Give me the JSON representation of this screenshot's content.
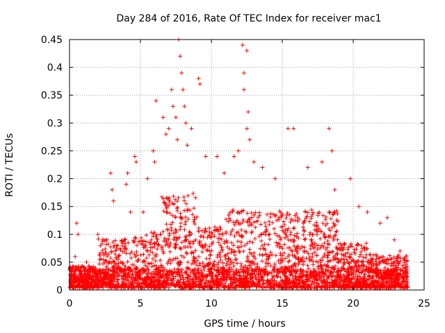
{
  "chart_data": {
    "type": "scatter",
    "title": "Day 284 of 2016, Rate Of TEC Index for receiver mac1",
    "xlabel": "GPS time / hours",
    "ylabel": "ROTI / TECUs",
    "xlim": [
      0,
      25
    ],
    "ylim": [
      0,
      0.45
    ],
    "x_ticks": [
      0,
      5,
      10,
      15,
      20,
      25
    ],
    "y_ticks": [
      0,
      0.05,
      0.1,
      0.15,
      0.2,
      0.25,
      0.3,
      0.35,
      0.4,
      0.45
    ],
    "x_tick_labels": [
      "0",
      "5",
      "10",
      "15",
      "20",
      "25"
    ],
    "y_tick_labels": [
      "0",
      "0.05",
      "0.1",
      "0.15",
      "0.2",
      "0.25",
      "0.3",
      "0.35",
      "0.4",
      "0.45"
    ],
    "grid": true,
    "marker": "+",
    "marker_color": "#ff0000",
    "grid_color": "#a0a0a0",
    "series": [
      {
        "name": "ROTI",
        "points": [
          [
            0.5,
            0.12
          ],
          [
            0.6,
            0.1
          ],
          [
            0.4,
            0.06
          ],
          [
            1.2,
            0.05
          ],
          [
            2.0,
            0.1
          ],
          [
            2.9,
            0.21
          ],
          [
            3.0,
            0.18
          ],
          [
            3.1,
            0.16
          ],
          [
            4.1,
            0.21
          ],
          [
            4.0,
            0.19
          ],
          [
            4.3,
            0.14
          ],
          [
            4.6,
            0.24
          ],
          [
            4.7,
            0.23
          ],
          [
            5.2,
            0.14
          ],
          [
            5.5,
            0.2
          ],
          [
            5.9,
            0.25
          ],
          [
            6.0,
            0.23
          ],
          [
            6.1,
            0.34
          ],
          [
            6.6,
            0.31
          ],
          [
            6.8,
            0.28
          ],
          [
            7.0,
            0.29
          ],
          [
            7.2,
            0.36
          ],
          [
            7.3,
            0.33
          ],
          [
            7.5,
            0.31
          ],
          [
            7.7,
            0.45
          ],
          [
            7.8,
            0.42
          ],
          [
            7.9,
            0.39
          ],
          [
            8.0,
            0.36
          ],
          [
            8.1,
            0.33
          ],
          [
            8.2,
            0.3
          ],
          [
            7.6,
            0.27
          ],
          [
            8.3,
            0.26
          ],
          [
            8.6,
            0.29
          ],
          [
            9.1,
            0.38
          ],
          [
            9.2,
            0.37
          ],
          [
            9.6,
            0.24
          ],
          [
            10.4,
            0.24
          ],
          [
            10.9,
            0.21
          ],
          [
            11.6,
            0.24
          ],
          [
            11.9,
            0.25
          ],
          [
            12.2,
            0.44
          ],
          [
            12.3,
            0.39
          ],
          [
            12.5,
            0.43
          ],
          [
            12.6,
            0.32
          ],
          [
            12.7,
            0.27
          ],
          [
            12.3,
            0.36
          ],
          [
            12.5,
            0.29
          ],
          [
            13.0,
            0.23
          ],
          [
            13.6,
            0.22
          ],
          [
            14.5,
            0.2
          ],
          [
            15.4,
            0.29
          ],
          [
            15.8,
            0.29
          ],
          [
            16.8,
            0.22
          ],
          [
            17.8,
            0.23
          ],
          [
            18.3,
            0.29
          ],
          [
            18.5,
            0.25
          ],
          [
            18.7,
            0.18
          ],
          [
            19.8,
            0.2
          ],
          [
            20.4,
            0.15
          ],
          [
            21.0,
            0.14
          ],
          [
            21.9,
            0.12
          ],
          [
            22.4,
            0.13
          ],
          [
            22.9,
            0.09
          ],
          [
            23.3,
            0.07
          ],
          [
            23.7,
            0.03
          ]
        ]
      }
    ]
  }
}
